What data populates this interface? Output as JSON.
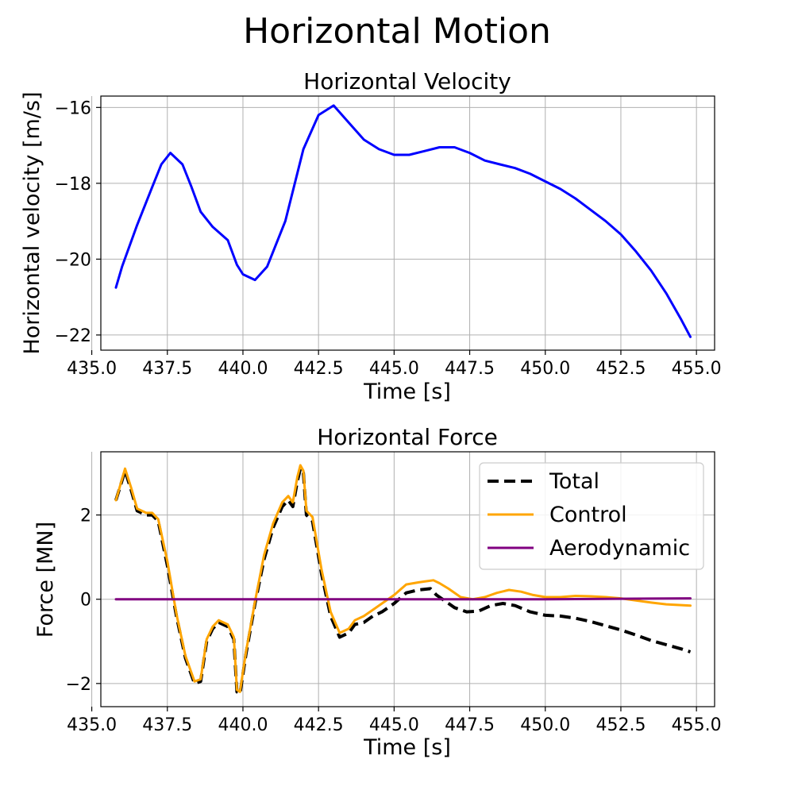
{
  "figure": {
    "title": "Horizontal Motion"
  },
  "chart_data": [
    {
      "type": "line",
      "title": "Horizontal Velocity",
      "xlabel": "Time [s]",
      "ylabel": "Horizontal velocity [m/s]",
      "xlim": [
        435.3,
        455.6
      ],
      "ylim": [
        -22.4,
        -15.7
      ],
      "xticks": [
        435.0,
        437.5,
        440.0,
        442.5,
        445.0,
        447.5,
        450.0,
        452.5,
        455.0
      ],
      "xtick_labels": [
        "435.0",
        "437.5",
        "440.0",
        "442.5",
        "445.0",
        "447.5",
        "450.0",
        "452.5",
        "455.0"
      ],
      "yticks": [
        -22,
        -20,
        -18,
        -16
      ],
      "ytick_labels": [
        "−22",
        "−20",
        "−18",
        "−16"
      ],
      "grid": true,
      "series": [
        {
          "color": "#0000ff",
          "dash": "solid",
          "x": [
            435.8,
            436.0,
            436.5,
            437.0,
            437.3,
            437.6,
            438.0,
            438.3,
            438.6,
            439.0,
            439.5,
            439.8,
            440.0,
            440.4,
            440.8,
            441.4,
            442.0,
            442.5,
            443.0,
            443.5,
            444.0,
            444.5,
            445.0,
            445.5,
            446.0,
            446.5,
            447.0,
            447.5,
            448.0,
            448.5,
            449.0,
            449.5,
            450.0,
            450.5,
            451.0,
            451.5,
            452.0,
            452.5,
            453.0,
            453.5,
            454.0,
            454.5,
            454.8
          ],
          "y": [
            -20.75,
            -20.2,
            -19.1,
            -18.1,
            -17.5,
            -17.2,
            -17.5,
            -18.1,
            -18.75,
            -19.15,
            -19.5,
            -20.15,
            -20.4,
            -20.55,
            -20.2,
            -19.0,
            -17.1,
            -16.2,
            -15.95,
            -16.4,
            -16.85,
            -17.1,
            -17.25,
            -17.25,
            -17.15,
            -17.05,
            -17.05,
            -17.2,
            -17.4,
            -17.5,
            -17.6,
            -17.75,
            -17.95,
            -18.15,
            -18.4,
            -18.7,
            -19.0,
            -19.35,
            -19.8,
            -20.3,
            -20.9,
            -21.6,
            -22.05
          ]
        }
      ]
    },
    {
      "type": "line",
      "title": "Horizontal Force",
      "xlabel": "Time [s]",
      "ylabel": "Force [MN]",
      "xlim": [
        435.3,
        455.6
      ],
      "ylim": [
        -2.55,
        3.5
      ],
      "xticks": [
        435.0,
        437.5,
        440.0,
        442.5,
        445.0,
        447.5,
        450.0,
        452.5,
        455.0
      ],
      "xtick_labels": [
        "435.0",
        "437.5",
        "440.0",
        "442.5",
        "445.0",
        "447.5",
        "450.0",
        "452.5",
        "455.0"
      ],
      "yticks": [
        -2,
        0,
        2
      ],
      "ytick_labels": [
        "−2",
        "0",
        "2"
      ],
      "grid": true,
      "legend": "top-right",
      "series": [
        {
          "name": "Total",
          "color": "#000000",
          "dash": "dashed",
          "x": [
            435.8,
            436.1,
            436.3,
            436.5,
            436.8,
            437.0,
            437.2,
            437.5,
            437.8,
            438.1,
            438.4,
            438.6,
            438.8,
            439.0,
            439.2,
            439.5,
            439.7,
            439.8,
            439.9,
            440.1,
            440.4,
            440.7,
            441.0,
            441.3,
            441.5,
            441.65,
            441.8,
            441.9,
            442.0,
            442.1,
            442.3,
            442.6,
            442.9,
            443.2,
            443.5,
            443.7,
            444.0,
            444.3,
            444.6,
            445.0,
            445.4,
            445.8,
            446.2,
            446.4,
            446.6,
            447.0,
            447.4,
            447.8,
            448.2,
            448.6,
            449.0,
            449.5,
            450.0,
            450.5,
            451.0,
            451.5,
            452.0,
            452.5,
            453.0,
            453.5,
            454.0,
            454.5,
            454.8
          ],
          "y": [
            2.35,
            3.05,
            2.6,
            2.1,
            2.0,
            2.0,
            1.85,
            0.8,
            -0.4,
            -1.4,
            -2.0,
            -1.95,
            -1.0,
            -0.7,
            -0.55,
            -0.65,
            -0.95,
            -2.2,
            -2.25,
            -1.3,
            -0.1,
            0.95,
            1.7,
            2.2,
            2.35,
            2.2,
            2.8,
            3.1,
            3.0,
            2.0,
            1.85,
            0.6,
            -0.4,
            -0.9,
            -0.8,
            -0.6,
            -0.55,
            -0.4,
            -0.3,
            -0.1,
            0.15,
            0.22,
            0.25,
            0.1,
            0.0,
            -0.2,
            -0.3,
            -0.28,
            -0.15,
            -0.1,
            -0.15,
            -0.3,
            -0.38,
            -0.4,
            -0.45,
            -0.53,
            -0.63,
            -0.73,
            -0.85,
            -0.98,
            -1.08,
            -1.18,
            -1.25
          ]
        },
        {
          "name": "Control",
          "color": "#ffa500",
          "dash": "solid",
          "x": [
            435.8,
            436.1,
            436.3,
            436.5,
            436.8,
            437.0,
            437.2,
            437.5,
            437.8,
            438.1,
            438.4,
            438.6,
            438.8,
            439.0,
            439.2,
            439.5,
            439.7,
            439.8,
            439.9,
            440.1,
            440.4,
            440.7,
            441.0,
            441.3,
            441.5,
            441.65,
            441.8,
            441.9,
            442.0,
            442.1,
            442.3,
            442.6,
            442.9,
            443.2,
            443.5,
            443.7,
            444.0,
            444.3,
            444.6,
            445.0,
            445.4,
            445.8,
            446.0,
            446.3,
            446.5,
            446.8,
            447.2,
            447.6,
            448.0,
            448.4,
            448.8,
            449.2,
            449.6,
            450.0,
            450.5,
            451.0,
            451.5,
            452.0,
            452.5,
            453.0,
            453.5,
            454.0,
            454.5,
            454.8
          ],
          "y": [
            2.35,
            3.1,
            2.65,
            2.15,
            2.05,
            2.05,
            1.9,
            0.9,
            -0.35,
            -1.35,
            -1.95,
            -1.9,
            -0.95,
            -0.65,
            -0.5,
            -0.6,
            -0.9,
            -2.15,
            -2.2,
            -1.25,
            -0.05,
            1.05,
            1.8,
            2.3,
            2.45,
            2.3,
            2.9,
            3.18,
            3.05,
            2.1,
            1.95,
            0.7,
            -0.3,
            -0.8,
            -0.7,
            -0.5,
            -0.4,
            -0.25,
            -0.1,
            0.1,
            0.35,
            0.4,
            0.42,
            0.45,
            0.38,
            0.25,
            0.05,
            0.0,
            0.05,
            0.15,
            0.22,
            0.18,
            0.1,
            0.05,
            0.05,
            0.08,
            0.07,
            0.05,
            0.02,
            -0.03,
            -0.08,
            -0.12,
            -0.14,
            -0.15
          ]
        },
        {
          "name": "Aerodynamic",
          "color": "#800080",
          "dash": "solid",
          "x": [
            435.8,
            440.0,
            445.0,
            450.0,
            452.0,
            453.5,
            454.8
          ],
          "y": [
            0.0,
            0.0,
            0.0,
            0.0,
            0.01,
            0.015,
            0.02
          ]
        }
      ]
    }
  ]
}
